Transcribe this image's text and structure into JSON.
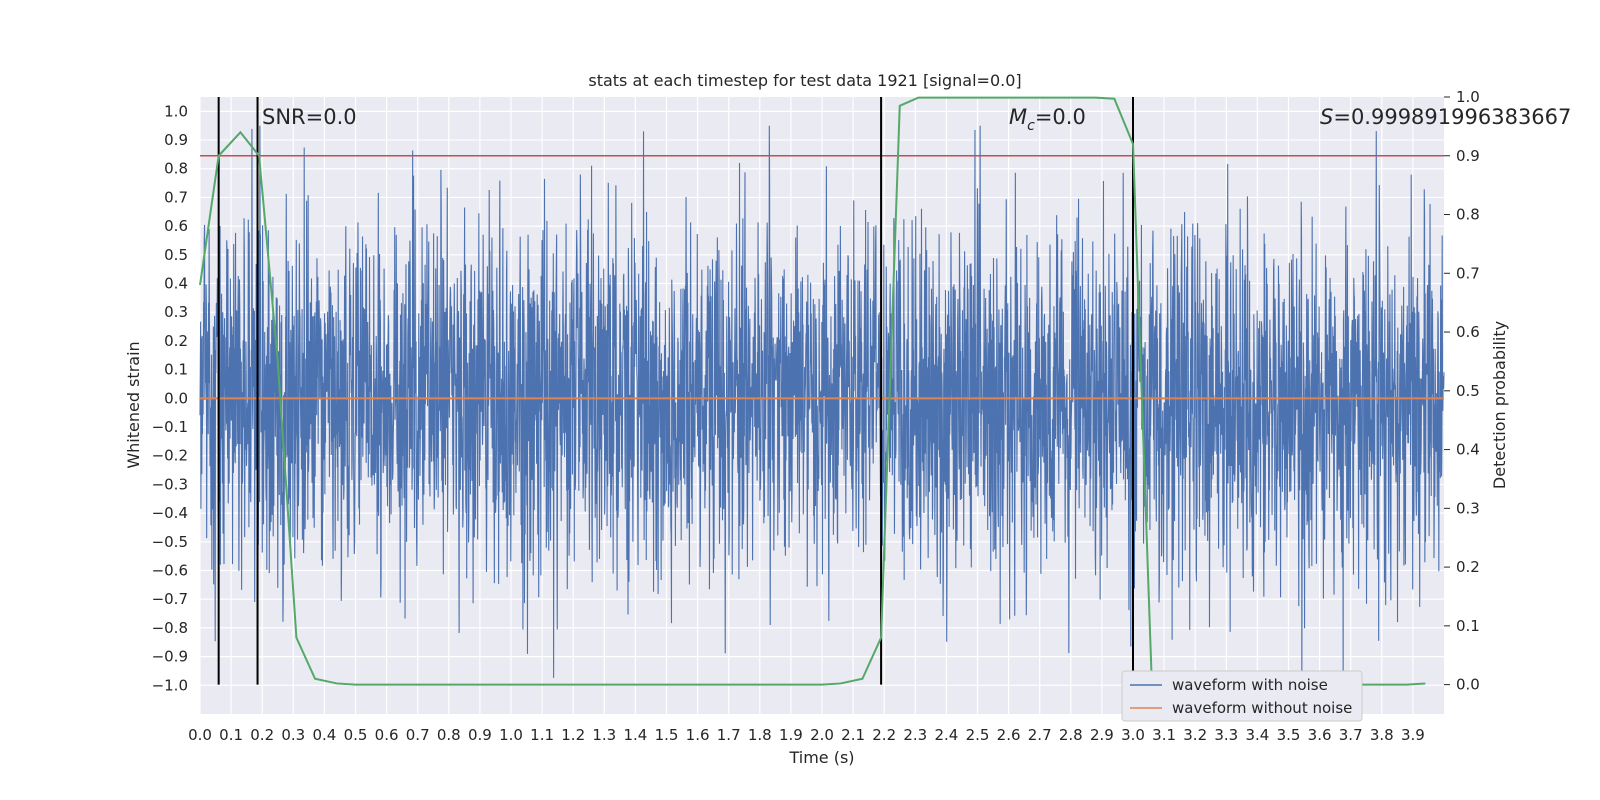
{
  "chart_data": {
    "type": "line",
    "title": "stats at each timestep for test data 1921 [signal=0.0]",
    "xlabel": "Time (s)",
    "ylabel_left": "Whitened strain",
    "ylabel_right": "Detection probability",
    "xlim": [
      0.0,
      4.0
    ],
    "ylim_left": [
      -1.1,
      1.05
    ],
    "ylim_right": [
      -0.05,
      1.0
    ],
    "x_ticks": [
      0.0,
      0.1,
      0.2,
      0.3,
      0.4,
      0.5,
      0.6,
      0.7,
      0.8,
      0.9,
      1.0,
      1.1,
      1.2,
      1.3,
      1.4,
      1.5,
      1.6,
      1.7,
      1.8,
      1.9,
      2.0,
      2.1,
      2.2,
      2.3,
      2.4,
      2.5,
      2.6,
      2.7,
      2.8,
      2.9,
      3.0,
      3.1,
      3.2,
      3.3,
      3.4,
      3.5,
      3.6,
      3.7,
      3.8,
      3.9
    ],
    "y_ticks_left": [
      1.0,
      0.9,
      0.8,
      0.7,
      0.6,
      0.5,
      0.4,
      0.3,
      0.2,
      0.1,
      0.0,
      -0.1,
      -0.2,
      -0.3,
      -0.4,
      -0.5,
      -0.6,
      -0.7,
      -0.8,
      -0.9,
      -1.0
    ],
    "y_ticks_right": [
      1.0,
      0.9,
      0.8,
      0.7,
      0.6,
      0.5,
      0.4,
      0.3,
      0.2,
      0.1,
      0.0
    ],
    "grid": true,
    "legend_position": "lower-right",
    "annotations": {
      "snr": "SNR=0.0",
      "mc_symbol": "M",
      "mc_sub": "c",
      "mc_value": "=0.0",
      "s_symbol": "S",
      "s_value": "=0.999891996383667"
    },
    "series": [
      {
        "name": "waveform with noise",
        "color": "#4c72b0",
        "axis": "left",
        "description": "dense whitened noise, roughly within [-1.0, 0.95]",
        "noise_envelope": 0.95
      },
      {
        "name": "waveform without noise",
        "color": "#dd8452",
        "axis": "left",
        "x": [
          0.0,
          4.0
        ],
        "y": [
          0.0,
          0.0
        ]
      },
      {
        "color": "#55a868",
        "axis": "right",
        "x": [
          0.0,
          0.06,
          0.13,
          0.19,
          0.25,
          0.31,
          0.37,
          0.44,
          0.5,
          0.56,
          0.63,
          0.69,
          0.75,
          0.81,
          0.88,
          0.94,
          1.0,
          1.06,
          1.13,
          1.19,
          1.25,
          1.31,
          1.38,
          1.44,
          1.5,
          1.56,
          1.63,
          1.69,
          1.75,
          1.81,
          1.88,
          1.94,
          2.0,
          2.06,
          2.13,
          2.19,
          2.25,
          2.31,
          2.38,
          2.44,
          2.5,
          2.56,
          2.63,
          2.69,
          2.75,
          2.81,
          2.88,
          2.94,
          3.0,
          3.06,
          3.13,
          3.19,
          3.25,
          3.31,
          3.38,
          3.44,
          3.5,
          3.56,
          3.63,
          3.69,
          3.75,
          3.81,
          3.88,
          3.94
        ],
        "y": [
          0.68,
          0.9,
          0.94,
          0.9,
          0.55,
          0.08,
          0.01,
          0.002,
          0.0,
          0.0,
          0.0,
          0.0,
          0.0,
          0.0,
          0.0,
          0.0,
          0.0,
          0.0,
          0.0,
          0.0,
          0.0,
          0.0,
          0.0,
          0.0,
          0.0,
          0.0,
          0.0,
          0.0,
          0.0,
          0.0,
          0.0,
          0.0,
          0.0,
          0.002,
          0.01,
          0.08,
          0.985,
          0.999,
          0.999,
          0.999,
          0.999,
          0.999,
          0.999,
          0.999,
          0.999,
          0.999,
          0.999,
          0.997,
          0.92,
          0.01,
          0.002,
          0.0,
          0.0,
          0.0,
          0.0,
          0.0,
          0.0,
          0.0,
          0.0,
          0.0,
          0.0,
          0.0,
          0.0,
          0.002
        ]
      }
    ],
    "threshold_line": {
      "axis": "right",
      "value": 0.9,
      "color": "#c44e52"
    },
    "vertical_lines_x": [
      0.06,
      0.185,
      2.19,
      3.0
    ]
  }
}
